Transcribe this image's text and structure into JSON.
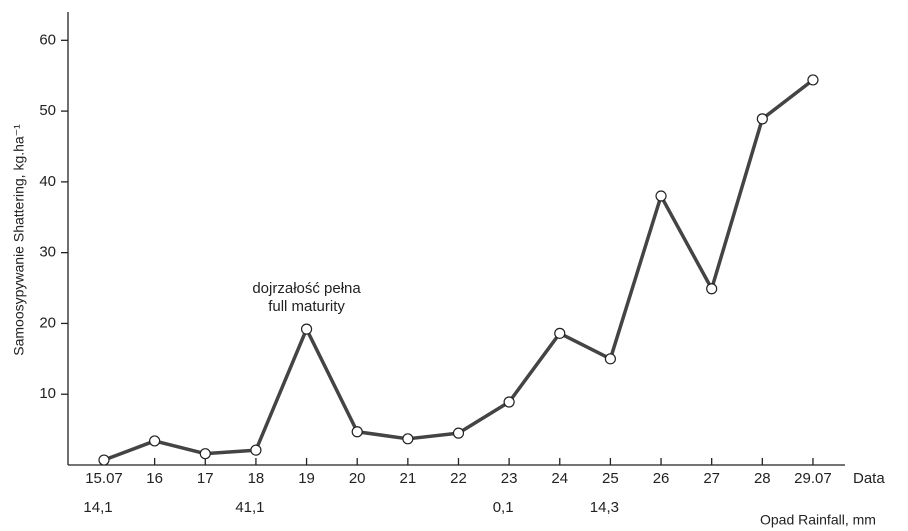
{
  "chart_data": {
    "type": "line",
    "y_label": "Samoosypywanie  Shattering,  kg.ha⁻¹",
    "x_label": "Data",
    "categories": [
      "15.07",
      "16",
      "17",
      "18",
      "19",
      "20",
      "21",
      "22",
      "23",
      "24",
      "25",
      "26",
      "27",
      "28",
      "29.07"
    ],
    "series": [
      {
        "color": "#444444",
        "values": [
          0.7,
          3.4,
          1.6,
          2.1,
          19.2,
          4.7,
          3.7,
          4.5,
          8.9,
          18.6,
          15.0,
          38.0,
          24.9,
          48.9,
          54.4
        ]
      }
    ],
    "rainfall": {
      "name": "Opad  Rainfall, mm",
      "values": [
        14.1,
        null,
        null,
        41.1,
        null,
        null,
        null,
        null,
        0.1,
        null,
        14.3,
        null,
        null,
        null,
        null
      ],
      "value_labels": [
        "14,1",
        null,
        null,
        "41,1",
        null,
        null,
        null,
        null,
        "0,1",
        null,
        "14,3",
        null,
        null,
        null,
        null
      ]
    },
    "annotation": {
      "lines": [
        "dojrzałość pełna",
        "full maturity"
      ],
      "category_index": 4
    },
    "ylim": [
      0,
      64
    ],
    "yticks": [
      10,
      20,
      30,
      40,
      50,
      60
    ]
  }
}
